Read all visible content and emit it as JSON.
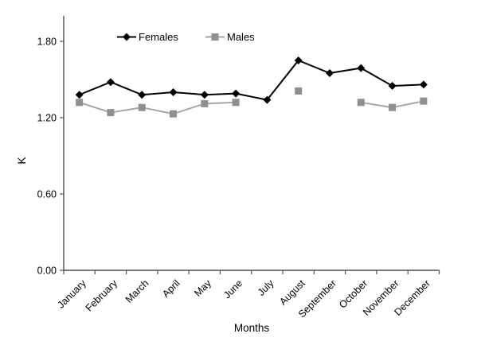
{
  "chart_data": {
    "type": "line",
    "title": "",
    "xlabel": "Months",
    "ylabel": "K",
    "categories": [
      "January",
      "February",
      "March",
      "April",
      "May",
      "June",
      "July",
      "August",
      "September",
      "October",
      "November",
      "December"
    ],
    "y_tick_labels": [
      "0.00",
      "0.60",
      "1.20",
      "1.80"
    ],
    "y_tick_values": [
      0,
      0.6,
      1.2,
      1.8
    ],
    "ylim": [
      0,
      2.0
    ],
    "grid": false,
    "legend_position": "top-center-inside",
    "series": [
      {
        "name": "Females",
        "marker": "diamond",
        "line_color": "#000000",
        "marker_color": "#000000",
        "values": [
          1.38,
          1.48,
          1.38,
          1.4,
          1.38,
          1.39,
          1.34,
          1.65,
          1.55,
          1.59,
          1.45,
          1.46
        ]
      },
      {
        "name": "Males",
        "marker": "square",
        "line_color": "#a6a6a6",
        "marker_color": "#8f8f8f",
        "values": [
          1.32,
          1.24,
          1.28,
          1.23,
          1.31,
          1.32,
          null,
          1.41,
          null,
          1.32,
          1.28,
          1.33
        ]
      }
    ],
    "colors": {
      "axis": "#4d4d4d",
      "text": "#000000",
      "background": "#ffffff"
    }
  }
}
